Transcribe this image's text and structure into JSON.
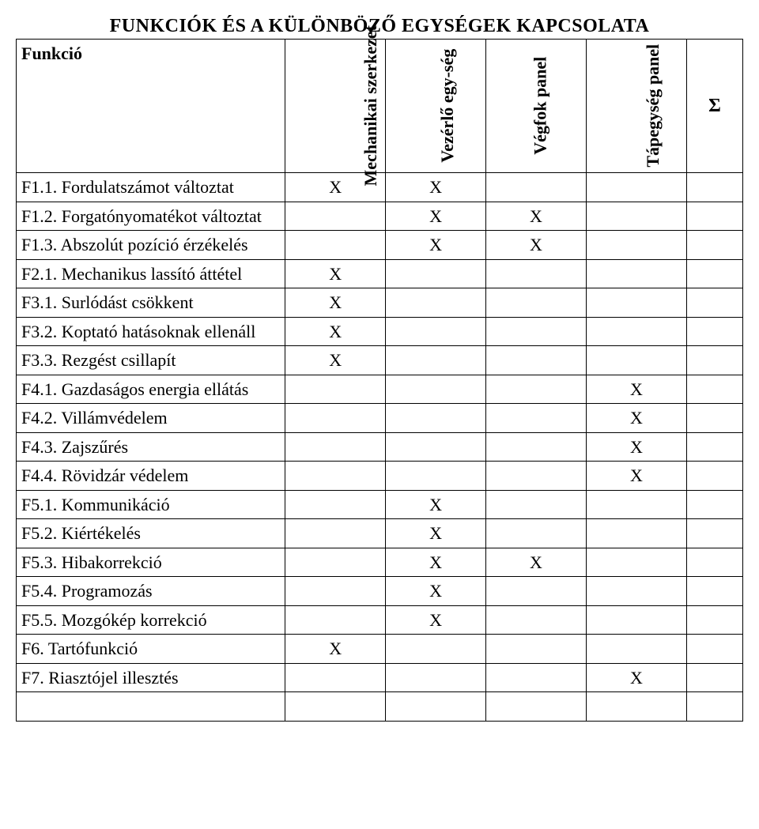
{
  "title": "FUNKCIÓK ÉS A KÜLÖNBÖZŐ EGYSÉGEK KAPCSOLATA",
  "header": {
    "func": "Funkció",
    "cols": [
      "Mechanikai szerkezet",
      "Vezérlő egy-ség",
      "Végfok panel",
      "Tápegység panel"
    ],
    "sigma": "Σ"
  },
  "mark": "X",
  "rows": [
    {
      "label": "F1.1. Fordulatszámot változtat",
      "cells": [
        "X",
        "X",
        "",
        ""
      ]
    },
    {
      "label": "F1.2. Forgatónyomatékot változtat",
      "cells": [
        "",
        "X",
        "X",
        ""
      ]
    },
    {
      "label": "F1.3. Abszolút pozíció érzékelés",
      "cells": [
        "",
        "X",
        "X",
        ""
      ]
    },
    {
      "label": "F2.1. Mechanikus lassító áttétel",
      "cells": [
        "X",
        "",
        "",
        ""
      ]
    },
    {
      "label": "F3.1. Surlódást csökkent",
      "cells": [
        "X",
        "",
        "",
        ""
      ]
    },
    {
      "label": "F3.2. Koptató hatásoknak ellenáll",
      "cells": [
        "X",
        "",
        "",
        ""
      ]
    },
    {
      "label": "F3.3. Rezgést csillapít",
      "cells": [
        "X",
        "",
        "",
        ""
      ]
    },
    {
      "label": "F4.1. Gazdaságos energia ellátás",
      "cells": [
        "",
        "",
        "",
        "X"
      ]
    },
    {
      "label": "F4.2. Villámvédelem",
      "cells": [
        "",
        "",
        "",
        "X"
      ]
    },
    {
      "label": "F4.3. Zajszűrés",
      "cells": [
        "",
        "",
        "",
        "X"
      ]
    },
    {
      "label": "F4.4. Rövidzár védelem",
      "cells": [
        "",
        "",
        "",
        "X"
      ]
    },
    {
      "label": "F5.1. Kommunikáció",
      "cells": [
        "",
        "X",
        "",
        ""
      ]
    },
    {
      "label": "F5.2. Kiértékelés",
      "cells": [
        "",
        "X",
        "",
        ""
      ]
    },
    {
      "label": "F5.3. Hibakorrekció",
      "cells": [
        "",
        "X",
        "X",
        ""
      ]
    },
    {
      "label": "F5.4. Programozás",
      "cells": [
        "",
        "X",
        "",
        ""
      ]
    },
    {
      "label": "F5.5. Mozgókép korrekció",
      "cells": [
        "",
        "X",
        "",
        ""
      ]
    },
    {
      "label": "F6. Tartófunkció",
      "cells": [
        "X",
        "",
        "",
        ""
      ]
    },
    {
      "label": "F7. Riasztójel illesztés",
      "cells": [
        "",
        "",
        "",
        "X"
      ]
    }
  ]
}
